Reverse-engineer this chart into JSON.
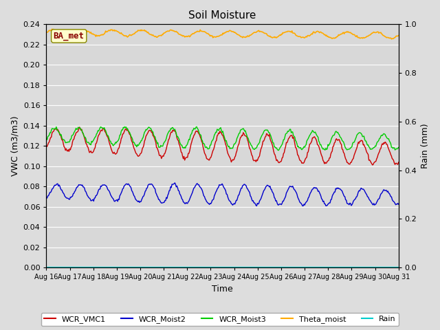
{
  "title": "Soil Moisture",
  "xlabel": "Time",
  "ylabel_left": "VWC (m3/m3)",
  "ylabel_right": "Rain (mm)",
  "ylim_left": [
    0.0,
    0.24
  ],
  "ylim_right": [
    0.0,
    1.0
  ],
  "yticks_left": [
    0.0,
    0.02,
    0.04,
    0.06,
    0.08,
    0.1,
    0.12,
    0.14,
    0.16,
    0.18,
    0.2,
    0.22,
    0.24
  ],
  "yticks_right_vals": [
    0.0,
    0.2,
    0.4,
    0.6,
    0.8,
    1.0
  ],
  "yticks_right_labels": [
    "0.0",
    "0.2",
    "0.4",
    "0.6",
    "0.8",
    "1.0"
  ],
  "xtick_labels": [
    "Aug 16",
    "Aug 17",
    "Aug 18",
    "Aug 19",
    "Aug 20",
    "Aug 21",
    "Aug 22",
    "Aug 23",
    "Aug 24",
    "Aug 25",
    "Aug 26",
    "Aug 27",
    "Aug 28",
    "Aug 29",
    "Aug 30",
    "Aug 31"
  ],
  "station_label": "BA_met",
  "colors": {
    "WCR_VMC1": "#cc0000",
    "WCR_Moist2": "#0000cc",
    "WCR_Moist3": "#00cc00",
    "Theta_moist": "#ffaa00",
    "Rain": "#00cccc"
  },
  "fig_bg": "#dddddd",
  "plot_bg": "#d8d8d8",
  "n_points": 500
}
